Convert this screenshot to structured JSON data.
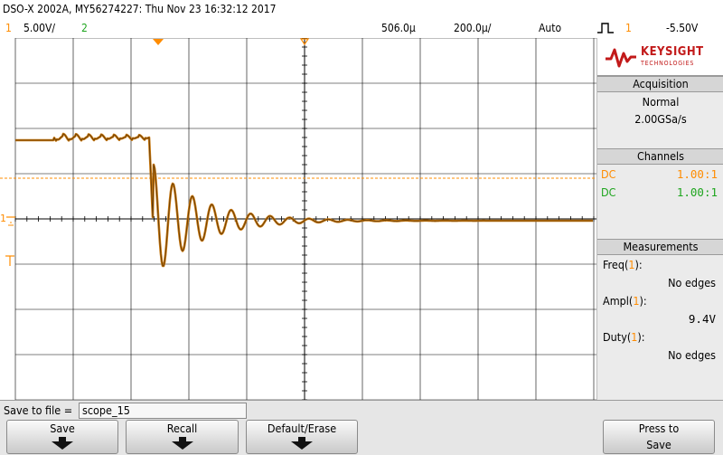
{
  "header": {
    "title": "DSO-X 2002A, MY56274227: Thu Nov 23 16:32:12 2017",
    "ch1_num": "1",
    "ch1_scale": "5.00V/",
    "ch2_num": "2",
    "time_delay": "506.0µ",
    "time_scale": "200.0µ/",
    "trigger_mode": "Auto",
    "trigger_source": "1",
    "trigger_level": "-5.50V"
  },
  "logo": {
    "brand": "KEYSIGHT",
    "sub": "TECHNOLOGIES"
  },
  "acquisition": {
    "title": "Acquisition",
    "mode": "Normal",
    "rate": "2.00GSa/s"
  },
  "channels": {
    "title": "Channels",
    "rows": [
      {
        "coupling": "DC",
        "probe": "1.00:1",
        "color": "#ff8c00"
      },
      {
        "coupling": "DC",
        "probe": "1.00:1",
        "color": "#1ea51e"
      }
    ]
  },
  "measurements": {
    "title": "Measurements",
    "items": [
      {
        "label": "Freq(1):",
        "value": "No edges"
      },
      {
        "label": "Ampl(1):",
        "value": "9.4V"
      },
      {
        "label": "Duty(1):",
        "value": "No edges"
      }
    ]
  },
  "save": {
    "label": "Save to file =",
    "filename": "scope_15"
  },
  "softkeys": {
    "save": "Save",
    "recall": "Recall",
    "default": "Default/Erase",
    "press_line1": "Press to",
    "press_line2": "Save"
  },
  "colors": {
    "ch1": "#ff8c00",
    "ch1_trace": "#c8780f",
    "ch2": "#1ea51e",
    "grid": "#000000"
  }
}
